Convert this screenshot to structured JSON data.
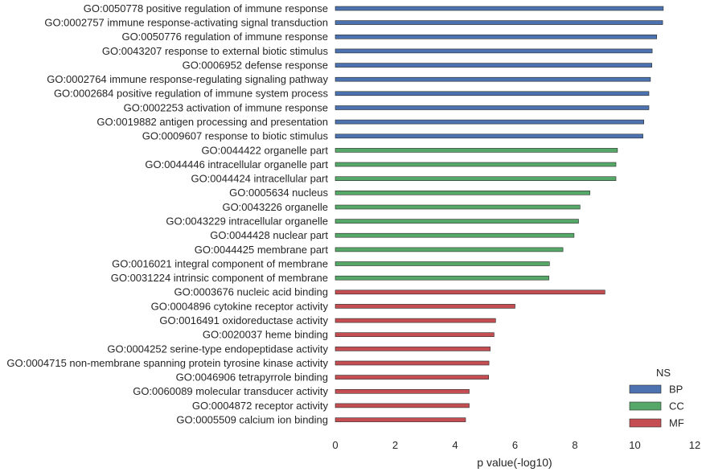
{
  "chart_data": {
    "type": "bar",
    "orientation": "horizontal",
    "title": "",
    "xlabel": "p value(-log10)",
    "ylabel": "",
    "xlim": [
      0,
      12
    ],
    "xticks": [
      0,
      2,
      4,
      6,
      8,
      10,
      12
    ],
    "grid": false,
    "legend": {
      "title": "NS",
      "position": "bottom-right",
      "entries": [
        {
          "name": "BP",
          "color": "#4c72b0"
        },
        {
          "name": "CC",
          "color": "#55a868"
        },
        {
          "name": "MF",
          "color": "#c44e52"
        }
      ]
    },
    "categories": [
      "GO:0050778 positive regulation of immune response",
      "GO:0002757 immune response-activating signal transduction",
      "GO:0050776 regulation of immune response",
      "GO:0043207 response to external biotic stimulus",
      "GO:0006952 defense response",
      "GO:0002764 immune response-regulating signaling pathway",
      "GO:0002684 positive regulation of immune system process",
      "GO:0002253 activation of immune response",
      "GO:0019882 antigen processing and presentation",
      "GO:0009607 response to biotic stimulus",
      "GO:0044422 organelle part",
      "GO:0044446 intracellular organelle part",
      "GO:0044424 intracellular part",
      "GO:0005634 nucleus",
      "GO:0043226 organelle",
      "GO:0043229 intracellular organelle",
      "GO:0044428 nuclear part",
      "GO:0044425 membrane part",
      "GO:0016021 integral component of membrane",
      "GO:0031224 intrinsic component of membrane",
      "GO:0003676 nucleic acid binding",
      "GO:0004896 cytokine receptor activity",
      "GO:0016491 oxidoreductase activity",
      "GO:0020037 heme binding",
      "GO:0004252 serine-type endopeptidase activity",
      "GO:0004715 non-membrane spanning protein tyrosine kinase activity",
      "GO:0046906 tetrapyrrole binding",
      "GO:0060089 molecular transducer activity",
      "GO:0004872 receptor activity",
      "GO:0005509 calcium ion binding"
    ],
    "groups": [
      "BP",
      "BP",
      "BP",
      "BP",
      "BP",
      "BP",
      "BP",
      "BP",
      "BP",
      "BP",
      "CC",
      "CC",
      "CC",
      "CC",
      "CC",
      "CC",
      "CC",
      "CC",
      "CC",
      "CC",
      "MF",
      "MF",
      "MF",
      "MF",
      "MF",
      "MF",
      "MF",
      "MF",
      "MF",
      "MF"
    ],
    "values": [
      10.95,
      10.93,
      10.73,
      10.58,
      10.57,
      10.52,
      10.47,
      10.47,
      10.3,
      10.27,
      9.42,
      9.37,
      9.37,
      8.5,
      8.17,
      8.12,
      7.97,
      7.6,
      7.15,
      7.13,
      9.0,
      6.0,
      5.35,
      5.3,
      5.17,
      5.13,
      5.12,
      4.47,
      4.47,
      4.35
    ]
  }
}
